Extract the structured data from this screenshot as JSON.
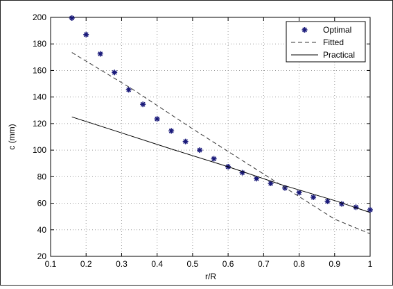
{
  "chart_data": {
    "type": "line",
    "xlabel": "r/R",
    "ylabel": "c (mm)",
    "xlim": [
      0.1,
      1.0
    ],
    "ylim": [
      20,
      200
    ],
    "x_ticks": [
      0.1,
      0.2,
      0.3,
      0.4,
      0.5,
      0.6,
      0.7,
      0.8,
      0.9,
      1.0
    ],
    "x_tick_labels": [
      "0.1",
      "0.2",
      "0.3",
      "0.4",
      "0.5",
      "0.6",
      "0.7",
      "0.8",
      "0.9",
      "1"
    ],
    "y_ticks": [
      20,
      40,
      60,
      80,
      100,
      120,
      140,
      160,
      180,
      200
    ],
    "y_tick_labels": [
      "20",
      "40",
      "60",
      "80",
      "100",
      "120",
      "140",
      "160",
      "180",
      "200"
    ],
    "grid": true,
    "legend_position": "top-right",
    "series": [
      {
        "name": "Optimal",
        "style": "markers",
        "marker": "asterisk",
        "color": "#1a1a7a",
        "points": [
          [
            0.16,
            199.5
          ],
          [
            0.2,
            187
          ],
          [
            0.24,
            172.5
          ],
          [
            0.28,
            158.5
          ],
          [
            0.32,
            145.5
          ],
          [
            0.36,
            134.5
          ],
          [
            0.4,
            123.5
          ],
          [
            0.44,
            114.5
          ],
          [
            0.48,
            106.5
          ],
          [
            0.52,
            100
          ],
          [
            0.56,
            93.5
          ],
          [
            0.6,
            87.5
          ],
          [
            0.64,
            83
          ],
          [
            0.68,
            78.5
          ],
          [
            0.72,
            75
          ],
          [
            0.76,
            71.5
          ],
          [
            0.8,
            68
          ],
          [
            0.84,
            64.5
          ],
          [
            0.88,
            61.5
          ],
          [
            0.92,
            59.5
          ],
          [
            0.96,
            57
          ],
          [
            1.0,
            55
          ]
        ]
      },
      {
        "name": "Fitted",
        "style": "dashed",
        "color": "#333333",
        "points": [
          [
            0.16,
            173.5
          ],
          [
            0.33,
            146
          ],
          [
            0.5,
            116
          ],
          [
            0.7,
            82
          ],
          [
            0.8,
            65
          ],
          [
            0.9,
            48
          ],
          [
            1.0,
            37
          ]
        ]
      },
      {
        "name": "Practical",
        "style": "solid",
        "color": "#000000",
        "points": [
          [
            0.16,
            125
          ],
          [
            0.3,
            113
          ],
          [
            0.45,
            100
          ],
          [
            0.6,
            87.5
          ],
          [
            0.75,
            74
          ],
          [
            0.9,
            62
          ],
          [
            1.0,
            53
          ]
        ]
      }
    ]
  }
}
